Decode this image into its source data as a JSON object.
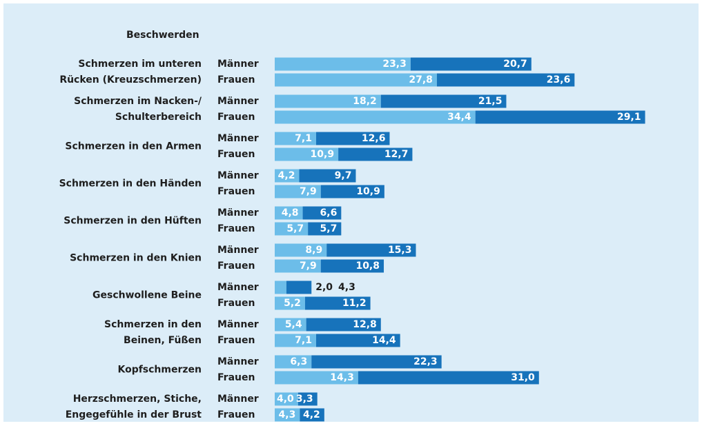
{
  "chart_data": {
    "type": "bar",
    "title": "Beschwerden",
    "categories": [
      [
        "Schmerzen im unteren",
        "Rücken (Kreuzschmerzen)"
      ],
      [
        "Schmerzen im Nacken-/",
        "Schulterbereich"
      ],
      [
        "Schmerzen in den Armen"
      ],
      [
        "Schmerzen in den Händen"
      ],
      [
        "Schmerzen in den Hüften"
      ],
      [
        "Schmerzen in den Knien"
      ],
      [
        "Geschwollene Beine"
      ],
      [
        "Schmerzen in den",
        "Beinen, Füßen"
      ],
      [
        "Kopfschmerzen"
      ],
      [
        "Herzschmerzen, Stiche,",
        "Engegefühle in der Brust"
      ]
    ],
    "series": [
      {
        "name": "Männer",
        "segments": [
          {
            "color": "#6cbde9",
            "values": [
              23.3,
              18.2,
              7.1,
              4.2,
              4.8,
              8.9,
              2.0,
              5.4,
              6.3,
              4.0
            ],
            "value_labels": [
              "23,3",
              "18,2",
              "7,1",
              "4,2",
              "4,8",
              "8,9",
              "2,0",
              "5,4",
              "6,3",
              "4,0"
            ]
          },
          {
            "color": "#1773bb",
            "values": [
              20.7,
              21.5,
              12.6,
              9.7,
              6.6,
              15.3,
              4.3,
              12.8,
              22.3,
              3.3
            ],
            "value_labels": [
              "20,7",
              "21,5",
              "12,6",
              "9,7",
              "6,6",
              "15,3",
              "4,3",
              "12,8",
              "22,3",
              "3,3"
            ]
          }
        ]
      },
      {
        "name": "Frauen",
        "segments": [
          {
            "color": "#6cbde9",
            "values": [
              27.8,
              34.4,
              10.9,
              7.9,
              5.7,
              7.9,
              5.2,
              7.1,
              14.3,
              4.3
            ],
            "value_labels": [
              "27,8",
              "34,4",
              "10,9",
              "7,9",
              "5,7",
              "7,9",
              "5,2",
              "7,1",
              "14,3",
              "4,3"
            ]
          },
          {
            "color": "#1773bb",
            "values": [
              23.6,
              29.1,
              12.7,
              10.9,
              5.7,
              10.8,
              11.2,
              14.4,
              31.0,
              4.2
            ],
            "value_labels": [
              "23,6",
              "29,1",
              "12,7",
              "10,9",
              "5,7",
              "10,8",
              "11,2",
              "14,4",
              "31,0",
              "4,2"
            ]
          }
        ]
      }
    ]
  }
}
